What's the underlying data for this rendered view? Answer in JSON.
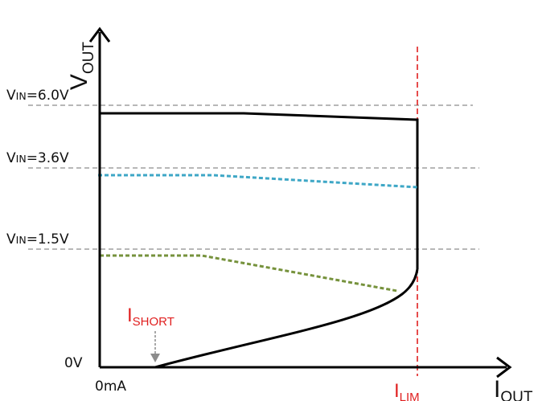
{
  "colors": {
    "axis": "#000000",
    "reference": "#8c8c8c",
    "limit": "#e02020",
    "vin_6v0_curve": "#000000",
    "vin_3v6_curve": "#3ea7c6",
    "vin_1v5_curve": "#76923c",
    "short_arrow": "#8c8c8c"
  },
  "axes": {
    "y": {
      "main": "V",
      "sub": "OUT"
    },
    "x": {
      "main": "I",
      "sub": "OUT"
    },
    "origin_v": "0V",
    "origin_i": "0mA"
  },
  "reference_levels": [
    {
      "pre": "V",
      "sub": "IN",
      "post": "=6.0V"
    },
    {
      "pre": "V",
      "sub": "IN",
      "post": "=3.6V"
    },
    {
      "pre": "V",
      "sub": "IN",
      "post": "=1.5V"
    }
  ],
  "markers": {
    "short": {
      "main": "I",
      "sub": "SHORT"
    },
    "limit": {
      "main": "I",
      "sub": "LIM"
    }
  },
  "curves": [
    {
      "level": "VIN=6.0V",
      "style": "solid"
    },
    {
      "level": "VIN=3.6V",
      "style": "dashed"
    },
    {
      "level": "VIN=1.5V",
      "style": "dashed"
    }
  ]
}
